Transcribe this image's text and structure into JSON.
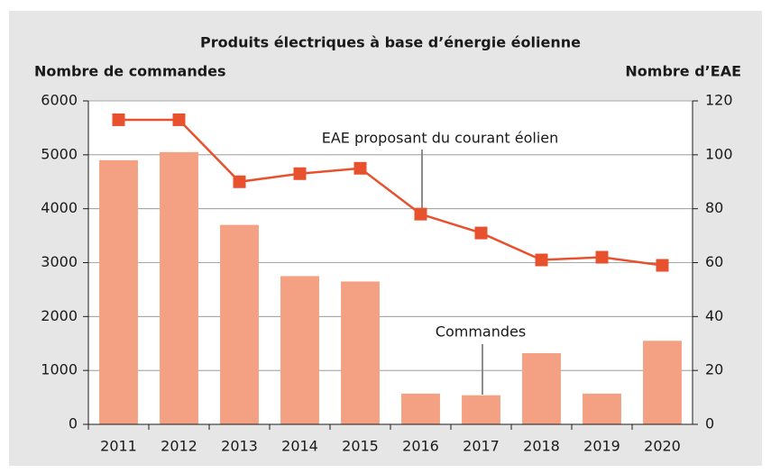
{
  "chart_data": {
    "type": "bar-line",
    "title": "Produits électriques à base d’énergie éolienne",
    "y_label": "Nombre de commandes",
    "y2_label": "Nombre d’EAE",
    "categories": [
      "2011",
      "2012",
      "2013",
      "2014",
      "2015",
      "2016",
      "2017",
      "2018",
      "2019",
      "2020"
    ],
    "series": [
      {
        "name": "Commandes",
        "type": "bar",
        "color": "#f4a083",
        "axis": "y",
        "values": [
          4900,
          5050,
          3700,
          2750,
          2650,
          570,
          540,
          1320,
          570,
          1550
        ]
      },
      {
        "name": "EAE proposant du courant éolien",
        "type": "line",
        "color": "#e8512e",
        "axis": "y2",
        "values": [
          113,
          113,
          90,
          93,
          95,
          78,
          71,
          61,
          62,
          59
        ]
      }
    ],
    "ylim": [
      0,
      6000
    ],
    "yticks": [
      0,
      1000,
      2000,
      3000,
      4000,
      5000,
      6000
    ],
    "y2lim": [
      0,
      120
    ],
    "y2ticks": [
      0,
      20,
      40,
      60,
      80,
      100,
      120
    ],
    "grid": true
  }
}
